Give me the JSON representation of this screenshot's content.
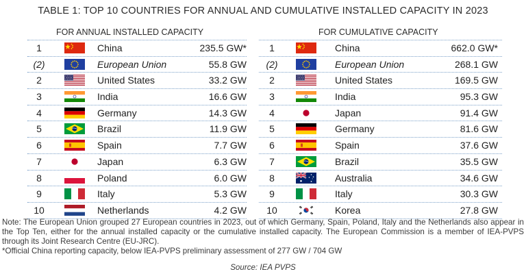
{
  "title": "TABLE 1: TOP 10 COUNTRIES FOR ANNUAL AND CUMULATIVE INSTALLED CAPACITY IN 2023",
  "annual": {
    "subtitle": "FOR ANNUAL INSTALLED CAPACITY",
    "rows": [
      {
        "rank": "1",
        "flag": "china-flag-icon",
        "country": "China",
        "value": "235.5 GW*"
      },
      {
        "rank": "(2)",
        "flag": "eu-flag-icon",
        "country": "European Union",
        "value": "55.8 GW"
      },
      {
        "rank": "2",
        "flag": "usa-flag-icon",
        "country": "United States",
        "value": "33.2 GW"
      },
      {
        "rank": "3",
        "flag": "india-flag-icon",
        "country": "India",
        "value": "16.6 GW"
      },
      {
        "rank": "4",
        "flag": "germany-flag-icon",
        "country": "Germany",
        "value": "14.3 GW"
      },
      {
        "rank": "5",
        "flag": "brazil-flag-icon",
        "country": "Brazil",
        "value": "11.9 GW"
      },
      {
        "rank": "6",
        "flag": "spain-flag-icon",
        "country": "Spain",
        "value": "7.7 GW"
      },
      {
        "rank": "7",
        "flag": "japan-flag-icon",
        "country": "Japan",
        "value": "6.3 GW"
      },
      {
        "rank": "8",
        "flag": "poland-flag-icon",
        "country": "Poland",
        "value": "6.0 GW"
      },
      {
        "rank": "9",
        "flag": "italy-flag-icon",
        "country": "Italy",
        "value": "5.3 GW"
      },
      {
        "rank": "10",
        "flag": "netherlands-flag-icon",
        "country": "Netherlands",
        "value": "4.2 GW"
      }
    ]
  },
  "cumulative": {
    "subtitle": "FOR CUMULATIVE CAPACITY",
    "rows": [
      {
        "rank": "1",
        "flag": "china-flag-icon",
        "country": "China",
        "value": "662.0 GW*"
      },
      {
        "rank": "(2)",
        "flag": "eu-flag-icon",
        "country": "European Union",
        "value": "268.1 GW"
      },
      {
        "rank": "2",
        "flag": "usa-flag-icon",
        "country": "United States",
        "value": "169.5 GW"
      },
      {
        "rank": "3",
        "flag": "india-flag-icon",
        "country": "India",
        "value": "95.3 GW"
      },
      {
        "rank": "4",
        "flag": "japan-flag-icon",
        "country": "Japan",
        "value": "91.4 GW"
      },
      {
        "rank": "5",
        "flag": "germany-flag-icon",
        "country": "Germany",
        "value": "81.6 GW"
      },
      {
        "rank": "6",
        "flag": "spain-flag-icon",
        "country": "Spain",
        "value": "37.6 GW"
      },
      {
        "rank": "7",
        "flag": "brazil-flag-icon",
        "country": "Brazil",
        "value": "35.5 GW"
      },
      {
        "rank": "8",
        "flag": "australia-flag-icon",
        "country": "Australia",
        "value": "34.6 GW"
      },
      {
        "rank": "9",
        "flag": "italy-flag-icon",
        "country": "Italy",
        "value": "30.3 GW"
      },
      {
        "rank": "10",
        "flag": "korea-flag-icon",
        "country": "Korea",
        "value": "27.8 GW"
      }
    ]
  },
  "note": "Note: The European Union grouped 27 European countries in 2023, out of which Germany, Spain, Poland, Italy and the Netherlands also appear in the Top Ten, either for the annual installed capacity or the cumulative installed capacity. The European Commission is a member of IEA-PVPS through its Joint Research Centre (EU-JRC).",
  "footnote": "*Official China reporting capacity, below IEA-PVPS preliminary assessment of 277 GW / 704 GW",
  "source": "Source: IEA PVPS"
}
